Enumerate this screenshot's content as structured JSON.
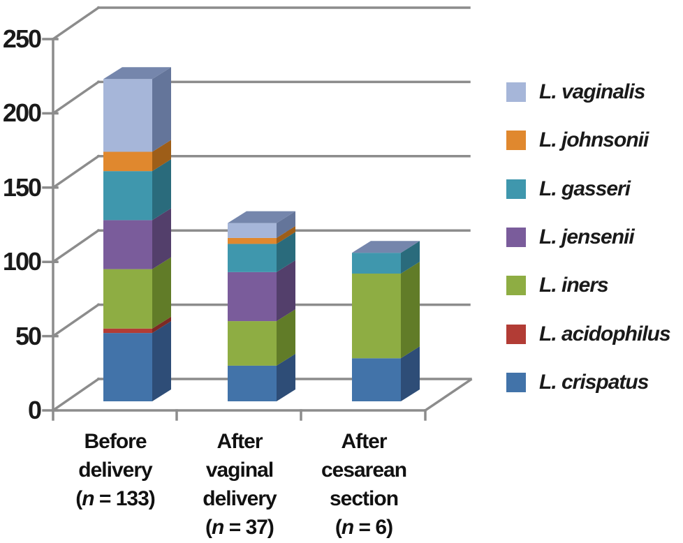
{
  "chart_data": {
    "type": "bar",
    "variant": "3d-stacked-column",
    "title": "",
    "xlabel": "",
    "ylabel": "",
    "ylim": [
      0,
      250
    ],
    "y_ticks": [
      0,
      50,
      100,
      150,
      200,
      250
    ],
    "grid": true,
    "legend_position": "right",
    "categories": [
      {
        "lines": [
          "Before",
          "delivery"
        ],
        "n_label": "(n = 133)"
      },
      {
        "lines": [
          "After",
          "vaginal",
          "delivery"
        ],
        "n_label": "(n = 37)"
      },
      {
        "lines": [
          "After",
          "cesarean",
          "section"
        ],
        "n_label": "(n = 6)"
      }
    ],
    "series": [
      {
        "name": "L. crispatus",
        "color": "#4273a9",
        "side_color": "#2e4d77",
        "values": [
          46,
          24,
          29
        ]
      },
      {
        "name": "L. acidophilus",
        "color": "#b23c35",
        "side_color": "#7d2a24",
        "values": [
          3,
          0,
          0
        ]
      },
      {
        "name": "L. iners",
        "color": "#8ead43",
        "side_color": "#617c28",
        "values": [
          40,
          30,
          57
        ]
      },
      {
        "name": "L. jensenii",
        "color": "#7a5c9b",
        "side_color": "#533f6b",
        "values": [
          33,
          33,
          0
        ]
      },
      {
        "name": "L. gasseri",
        "color": "#3f97ad",
        "side_color": "#2a6b7c",
        "values": [
          33,
          19,
          14
        ]
      },
      {
        "name": "L. johnsonii",
        "color": "#e0882e",
        "side_color": "#9e5e18",
        "values": [
          13,
          4,
          0
        ]
      },
      {
        "name": "L. vaginalis",
        "color": "#a6b6d9",
        "side_color": "#64759a",
        "values": [
          49,
          10,
          0
        ]
      }
    ],
    "legend": [
      "L. vaginalis",
      "L. johnsonii",
      "L. gasseri",
      "L. jensenii",
      "L. iners",
      "L. acidophilus",
      "L. crispatus"
    ],
    "colors": {
      "grid": "#8c8c8c",
      "text": "#1a1a1a",
      "top_face": "#7586ac",
      "background": "#ffffff"
    }
  }
}
